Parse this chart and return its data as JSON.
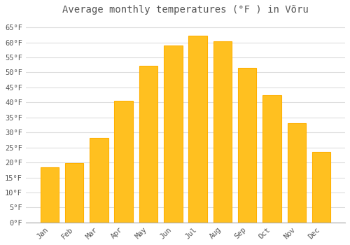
{
  "title": "Average monthly temperatures (°F ) in Võru",
  "months": [
    "Jan",
    "Feb",
    "Mar",
    "Apr",
    "May",
    "Jun",
    "Jul",
    "Aug",
    "Sep",
    "Oct",
    "Nov",
    "Dec"
  ],
  "values": [
    18.5,
    19.8,
    28.2,
    40.6,
    52.2,
    59.0,
    62.2,
    60.3,
    51.4,
    42.4,
    33.1,
    23.5
  ],
  "bar_color": "#FFC020",
  "bar_edge_color": "#FFB000",
  "background_color": "#FFFFFF",
  "grid_color": "#DDDDDD",
  "text_color": "#555555",
  "ylim": [
    0,
    68
  ],
  "yticks": [
    0,
    5,
    10,
    15,
    20,
    25,
    30,
    35,
    40,
    45,
    50,
    55,
    60,
    65
  ],
  "ytick_labels": [
    "0°F",
    "5°F",
    "10°F",
    "15°F",
    "20°F",
    "25°F",
    "30°F",
    "35°F",
    "40°F",
    "45°F",
    "50°F",
    "55°F",
    "60°F",
    "65°F"
  ],
  "title_fontsize": 10,
  "tick_fontsize": 7.5,
  "font_family": "monospace"
}
